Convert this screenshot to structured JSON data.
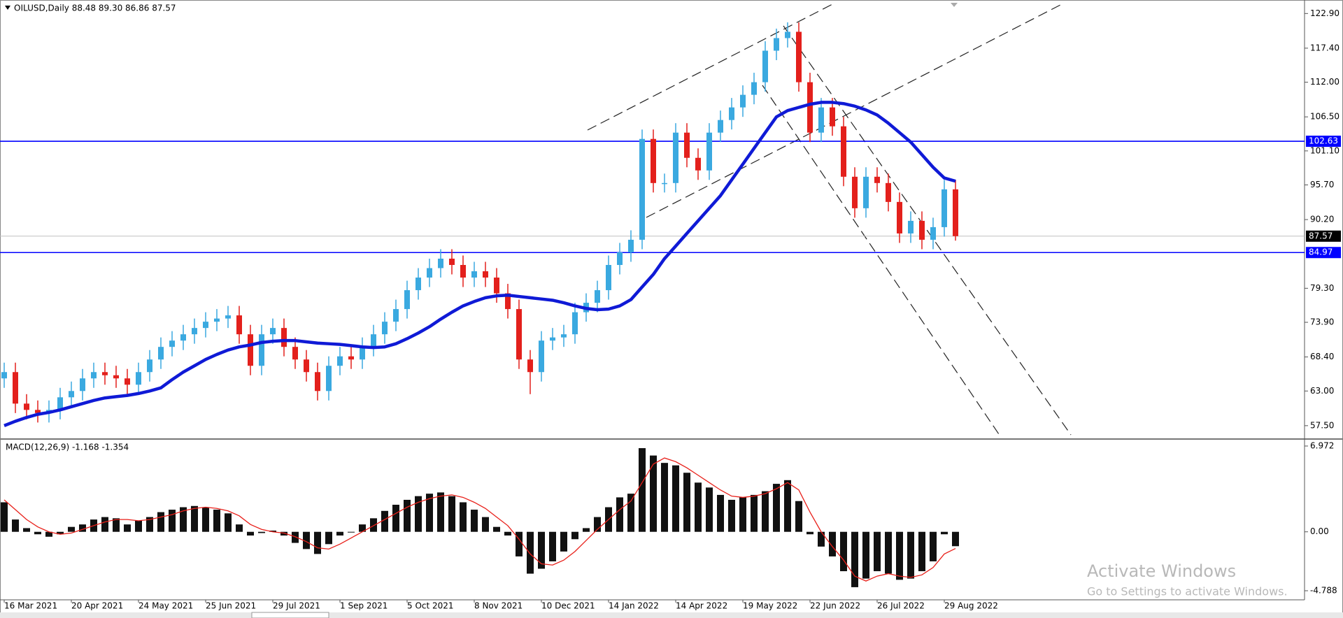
{
  "chart_data": [
    {
      "type": "candlestick",
      "title": "OILUSD,Daily  88.48 89.30 86.86 87.57",
      "categories": [
        "16 Mar 2021",
        null,
        null,
        null,
        null,
        null,
        "20 Apr 2021",
        null,
        null,
        null,
        null,
        null,
        "24 May 2021",
        null,
        null,
        null,
        null,
        null,
        "25 Jun 2021",
        null,
        null,
        null,
        null,
        null,
        "29 Jul 2021",
        null,
        null,
        null,
        null,
        null,
        "1 Sep 2021",
        null,
        null,
        null,
        null,
        null,
        "5 Oct 2021",
        null,
        null,
        null,
        null,
        null,
        "8 Nov 2021",
        null,
        null,
        null,
        null,
        null,
        "10 Dec 2021",
        null,
        null,
        null,
        null,
        null,
        "14 Jan 2022",
        null,
        null,
        null,
        null,
        null,
        "14 Apr 2022",
        null,
        null,
        null,
        null,
        null,
        "19 May 2022",
        null,
        null,
        null,
        null,
        null,
        "22 Jun 2022",
        null,
        null,
        null,
        null,
        null,
        "26 Jul 2022",
        null,
        null,
        null,
        null,
        null,
        "29 Aug 2022",
        null
      ],
      "open": [
        65,
        66,
        61,
        60,
        59.5,
        60,
        62,
        63,
        65,
        66,
        65.5,
        65,
        64,
        66,
        68,
        70,
        71,
        72,
        73,
        74,
        74.5,
        75,
        72,
        67,
        72,
        73,
        70,
        68,
        66,
        63,
        67,
        68.5,
        68,
        70,
        72,
        74,
        76,
        79,
        81,
        82.5,
        84,
        83,
        81,
        82,
        81,
        78.5,
        76,
        68,
        66,
        71,
        71.5,
        72,
        75.5,
        77,
        79,
        83,
        85,
        87,
        103,
        96,
        96,
        104,
        100,
        98,
        104,
        106,
        108,
        110,
        112,
        117,
        119,
        120,
        112,
        104,
        108,
        105,
        97,
        92,
        97,
        96,
        93,
        88,
        90,
        87,
        89,
        95
      ],
      "high": [
        67.5,
        67.5,
        62.5,
        61.5,
        61.5,
        63.5,
        64.5,
        66.5,
        67.5,
        67.5,
        67,
        66.5,
        67.5,
        69.5,
        71.5,
        72.5,
        73.5,
        74.5,
        75.5,
        76,
        76.5,
        76.5,
        73.5,
        73.5,
        74.5,
        74.5,
        71.5,
        69.5,
        67.5,
        68.5,
        70,
        70,
        71.5,
        73.5,
        75.5,
        77.5,
        80.5,
        82.5,
        84,
        85.5,
        85.5,
        84.5,
        83.5,
        83.5,
        82.5,
        80,
        77.5,
        69.5,
        72.5,
        73,
        73.5,
        77,
        78.5,
        80.5,
        84.5,
        86.5,
        88.5,
        104.5,
        104.5,
        97.5,
        105.5,
        105.5,
        101.5,
        105.5,
        107.5,
        109.5,
        111.5,
        113.5,
        118.5,
        120.5,
        121.5,
        121.5,
        113.5,
        109.5,
        109.5,
        106.5,
        98.5,
        98.5,
        98.5,
        97.5,
        94.5,
        91.5,
        91.5,
        90.5,
        96.5,
        96.5
      ],
      "low": [
        63.5,
        59.5,
        58.5,
        58,
        58,
        58.5,
        60.5,
        61.5,
        63.5,
        64,
        63.5,
        62.5,
        62.5,
        64.5,
        66.5,
        68.5,
        69.5,
        70.5,
        71.5,
        72.5,
        73,
        70.5,
        65.5,
        65.5,
        70.5,
        68.5,
        66.5,
        64.5,
        61.5,
        61.5,
        65.5,
        66.5,
        66.5,
        68.5,
        70.5,
        72.5,
        74.5,
        77.5,
        79.5,
        81,
        81.5,
        79.5,
        79.5,
        79.5,
        77,
        74.5,
        66.5,
        62.5,
        64.5,
        69.5,
        70,
        70.5,
        74,
        75.5,
        77.5,
        81.5,
        83.5,
        85.5,
        94.5,
        94.5,
        94.5,
        98.5,
        96.5,
        96.5,
        102.5,
        104.5,
        106.5,
        108.5,
        110.5,
        115.5,
        117.5,
        110.5,
        102.5,
        102.5,
        103.5,
        95.5,
        90.5,
        90.5,
        94.5,
        91.5,
        86.5,
        86.5,
        85.5,
        85.5,
        87.5,
        86.86
      ],
      "close": [
        66,
        61,
        60,
        59.5,
        60,
        62,
        63,
        65,
        66,
        65.5,
        65,
        64,
        66,
        68,
        70,
        71,
        72,
        73,
        74,
        74.5,
        75,
        72,
        67,
        72,
        73,
        70,
        68,
        66,
        63,
        67,
        68.5,
        68,
        70,
        72,
        74,
        76,
        79,
        81,
        82.5,
        84,
        83,
        81,
        82,
        81,
        78.5,
        76,
        68,
        66,
        71,
        71.5,
        72,
        75.5,
        77,
        79,
        83,
        85,
        87,
        103,
        96,
        96,
        104,
        100,
        98,
        104,
        106,
        108,
        110,
        112,
        117,
        119,
        120,
        112,
        104,
        108,
        105,
        97,
        92,
        97,
        96,
        93,
        88,
        90,
        87,
        89,
        95,
        87.57
      ],
      "up_color": "#3aa9e0",
      "down_color": "#e3201c",
      "moving_average": {
        "color": "#0f1ad6",
        "values": [
          57.5,
          58.2,
          58.8,
          59.3,
          59.6,
          60,
          60.5,
          61,
          61.5,
          61.9,
          62.1,
          62.3,
          62.6,
          63,
          63.5,
          64.8,
          66,
          67,
          68,
          68.8,
          69.5,
          70,
          70.3,
          70.7,
          70.9,
          71,
          71,
          70.8,
          70.6,
          70.5,
          70.4,
          70.2,
          70,
          69.9,
          70,
          70.5,
          71.3,
          72.2,
          73.2,
          74.4,
          75.5,
          76.5,
          77.2,
          77.8,
          78.1,
          78.2,
          78,
          77.8,
          77.6,
          77.4,
          77,
          76.5,
          76.1,
          75.9,
          76,
          76.5,
          77.5,
          79.5,
          81.5,
          84,
          86,
          88,
          90,
          92,
          94,
          96.5,
          99,
          101.5,
          104,
          106.5,
          107.5,
          108,
          108.5,
          108.8,
          108.8,
          108.6,
          108.2,
          107.6,
          106.8,
          105.5,
          104,
          102.5,
          100.5,
          98.5,
          96.8,
          96.3
        ]
      },
      "levels": [
        102.63,
        84.97
      ],
      "level_color": "#0000ff",
      "last_price": 87.57,
      "ylim": [
        55.6,
        124.6
      ],
      "yticks": [
        {
          "value": 122.9,
          "label": "122.90"
        },
        {
          "value": 117.4,
          "label": "117.40"
        },
        {
          "value": 112,
          "label": "112.00"
        },
        {
          "value": 106.5,
          "label": "106.50"
        },
        {
          "value": 101.1,
          "label": "101.10"
        },
        {
          "value": 95.7,
          "label": "95.70"
        },
        {
          "value": 90.2,
          "label": "90.20"
        },
        {
          "value": 79.3,
          "label": "79.30"
        },
        {
          "value": 73.9,
          "label": "73.90"
        },
        {
          "value": 68.4,
          "label": "68.40"
        },
        {
          "value": 63,
          "label": "63.00"
        },
        {
          "value": 57.5,
          "label": "57.50"
        }
      ]
    },
    {
      "type": "macd",
      "title": "MACD(12,26,9) -1.168 -1.354",
      "values": [
        2.4,
        1,
        0.3,
        -0.2,
        -0.4,
        -0.2,
        0.4,
        0.6,
        1,
        1.2,
        1.1,
        0.6,
        0.9,
        1.2,
        1.6,
        1.8,
        2,
        2.1,
        2,
        1.8,
        1.5,
        0.6,
        -0.3,
        -0.1,
        0.1,
        -0.3,
        -0.9,
        -1.4,
        -1.8,
        -1,
        -0.3,
        0,
        0.6,
        1.1,
        1.7,
        2.2,
        2.6,
        2.9,
        3.1,
        3.2,
        2.9,
        2.4,
        1.8,
        1.2,
        0.4,
        -0.3,
        -2,
        -3.4,
        -3,
        -2.4,
        -1.6,
        -0.6,
        0.3,
        1.2,
        2,
        2.8,
        3.1,
        6.8,
        6.2,
        5.6,
        5.4,
        4.8,
        4,
        3.6,
        3,
        2.6,
        2.8,
        3,
        3.3,
        3.9,
        4.2,
        2.5,
        -0.2,
        -1.2,
        -2,
        -3.2,
        -4.5,
        -3.8,
        -3.2,
        -3.4,
        -3.9,
        -3.8,
        -3.2,
        -2.4,
        -0.2,
        -1.168
      ],
      "signal": [
        2.6,
        1.8,
        1,
        0.4,
        0,
        -0.2,
        -0.1,
        0.2,
        0.5,
        0.8,
        1,
        1,
        0.9,
        1,
        1.2,
        1.4,
        1.7,
        1.9,
        2,
        1.9,
        1.7,
        1.3,
        0.6,
        0.2,
        0,
        -0.1,
        -0.4,
        -0.8,
        -1.3,
        -1.4,
        -1,
        -0.5,
        0,
        0.5,
        1,
        1.5,
        2,
        2.4,
        2.7,
        2.9,
        3,
        2.8,
        2.4,
        1.9,
        1.2,
        0.5,
        -0.6,
        -1.8,
        -2.6,
        -2.7,
        -2.3,
        -1.6,
        -0.7,
        0.2,
        1,
        1.8,
        2.5,
        4,
        5.5,
        6,
        5.7,
        5.2,
        4.6,
        4,
        3.4,
        2.9,
        2.8,
        2.9,
        3.1,
        3.5,
        4,
        3.4,
        1.6,
        0,
        -1.2,
        -2.3,
        -3.6,
        -4,
        -3.6,
        -3.4,
        -3.6,
        -3.7,
        -3.5,
        -2.9,
        -1.8,
        -1.354
      ],
      "color": "#111111",
      "signal_color": "#e8201a",
      "ylim": [
        -5.47,
        7.37
      ],
      "yticks": [
        6.972,
        {
          "value": 0,
          "label": "0.00"
        },
        -4.788
      ]
    }
  ],
  "watermark": {
    "title": "Activate Windows",
    "subtitle": "Go to Settings to activate Windows."
  }
}
